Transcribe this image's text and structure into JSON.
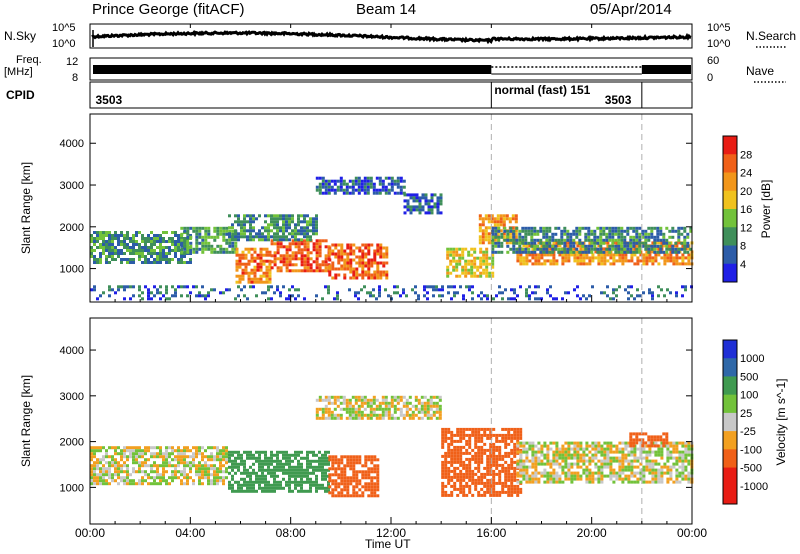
{
  "header": {
    "radar": "Prince George (fitACF)",
    "beam": "Beam 14",
    "date": "05/Apr/2014"
  },
  "noise_panel": {
    "left_label": "N.Sky",
    "left_ticks": [
      "10^5",
      "10^0"
    ],
    "right_label": "N.Search",
    "right_ticks": [
      "10^5",
      "10^0"
    ]
  },
  "freq_panel": {
    "left_label_1": "Freq.",
    "left_label_2": "[MHz]",
    "left_ticks": [
      "12",
      "8"
    ],
    "right_label": "Nave",
    "right_ticks": [
      "60",
      "0"
    ]
  },
  "cpid_panel": {
    "label": "CPID",
    "segments": [
      {
        "text": "3503",
        "start_hour": 0.1
      },
      {
        "text": "normal (fast) 151",
        "start_hour": 16.0
      },
      {
        "text": "3503",
        "start_hour": 20.4
      }
    ],
    "boundaries_hours": [
      16.0,
      22.0
    ]
  },
  "x_axis": {
    "label": "Time UT",
    "ticks": [
      "00:00",
      "04:00",
      "08:00",
      "12:00",
      "16:00",
      "20:00",
      "00:00"
    ],
    "range_hours": [
      0,
      24
    ]
  },
  "chart_data": [
    {
      "type": "heatmap",
      "name": "power",
      "ylabel": "Slant Range [km]",
      "yticks": [
        1000,
        2000,
        3000,
        4000
      ],
      "ylim": [
        200,
        4700
      ],
      "colorbar": {
        "label": "Power [dB]",
        "ticks": [
          4,
          8,
          12,
          16,
          20,
          24,
          28
        ],
        "colors": [
          "#1f1fe6",
          "#2c5ca8",
          "#3f8f5a",
          "#72c23a",
          "#f0c21e",
          "#f2961a",
          "#f06018",
          "#e81c14"
        ]
      },
      "patches": [
        {
          "t": [
            0.0,
            4.0
          ],
          "r": [
            1150,
            1900
          ],
          "v": 10
        },
        {
          "t": [
            3.6,
            5.8
          ],
          "r": [
            1400,
            2000
          ],
          "v": 11
        },
        {
          "t": [
            5.8,
            7.2
          ],
          "r": [
            700,
            1500
          ],
          "v": 24
        },
        {
          "t": [
            7.2,
            9.5
          ],
          "r": [
            950,
            1700
          ],
          "v": 26
        },
        {
          "t": [
            9.5,
            11.8
          ],
          "r": [
            800,
            1600
          ],
          "v": 25
        },
        {
          "t": [
            5.5,
            9.0
          ],
          "r": [
            1700,
            2300
          ],
          "v": 9
        },
        {
          "t": [
            9.0,
            12.5
          ],
          "r": [
            2800,
            3200
          ],
          "v": 6
        },
        {
          "t": [
            12.5,
            14.0
          ],
          "r": [
            2300,
            2800
          ],
          "v": 6
        },
        {
          "t": [
            14.2,
            16.0
          ],
          "r": [
            800,
            1500
          ],
          "v": 18
        },
        {
          "t": [
            15.5,
            17.0
          ],
          "r": [
            1600,
            2300
          ],
          "v": 22
        },
        {
          "t": [
            17.0,
            24.0
          ],
          "r": [
            1100,
            1650
          ],
          "v": 23
        },
        {
          "t": [
            16.0,
            24.0
          ],
          "r": [
            1400,
            2000
          ],
          "v": 9
        },
        {
          "t": [
            0.0,
            24.0
          ],
          "r": [
            250,
            600
          ],
          "v": 6
        }
      ]
    },
    {
      "type": "heatmap",
      "name": "velocity",
      "ylabel": "Slant Range [km]",
      "yticks": [
        1000,
        2000,
        3000,
        4000
      ],
      "ylim": [
        200,
        4700
      ],
      "colorbar": {
        "label": "Velocity [m s^-1]",
        "ticks": [
          1000,
          500,
          100,
          25,
          -25,
          -100,
          -500,
          -1000
        ],
        "colors": [
          "#1f2fd6",
          "#2f68a8",
          "#3f9a50",
          "#72c23a",
          "#c8c8c8",
          "#f2a020",
          "#f06018",
          "#e81c14",
          "#e81c14"
        ]
      },
      "patches": [
        {
          "t": [
            0.0,
            5.5
          ],
          "r": [
            1100,
            1900
          ],
          "v": 0
        },
        {
          "t": [
            5.5,
            9.5
          ],
          "r": [
            900,
            1800
          ],
          "v": 300
        },
        {
          "t": [
            9.5,
            11.5
          ],
          "r": [
            800,
            1700
          ],
          "v": -300
        },
        {
          "t": [
            9.0,
            14.0
          ],
          "r": [
            2500,
            3000
          ],
          "v": 0
        },
        {
          "t": [
            14.0,
            17.2
          ],
          "r": [
            800,
            2300
          ],
          "v": -200
        },
        {
          "t": [
            17.0,
            24.0
          ],
          "r": [
            1100,
            2000
          ],
          "v": 0
        },
        {
          "t": [
            21.5,
            23.0
          ],
          "r": [
            1900,
            2200
          ],
          "v": -200
        }
      ]
    }
  ]
}
